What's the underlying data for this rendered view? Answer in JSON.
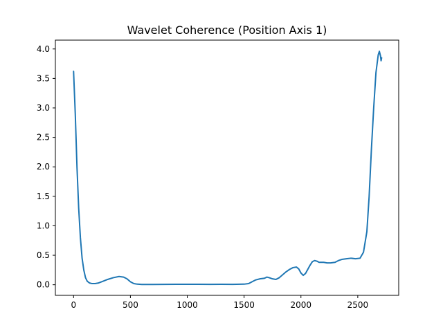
{
  "chart_data": {
    "type": "line",
    "title": "Wavelet Coherence (Position Axis 1)",
    "xlabel": "",
    "ylabel": "",
    "xlim": [
      -160,
      2860
    ],
    "ylim": [
      -0.18,
      4.15
    ],
    "xticks": [
      0,
      500,
      1000,
      1500,
      2000,
      2500
    ],
    "yticks": [
      0.0,
      0.5,
      1.0,
      1.5,
      2.0,
      2.5,
      3.0,
      3.5,
      4.0
    ],
    "xtick_labels": [
      "0",
      "500",
      "1000",
      "1500",
      "2000",
      "2500"
    ],
    "ytick_labels": [
      "0.0",
      "0.5",
      "1.0",
      "1.5",
      "2.0",
      "2.5",
      "3.0",
      "3.5",
      "4.0"
    ],
    "grid": false,
    "series": [
      {
        "color": "#1f77b4",
        "x": [
          0,
          15,
          30,
          45,
          60,
          75,
          90,
          105,
          120,
          140,
          160,
          190,
          220,
          260,
          300,
          350,
          400,
          440,
          470,
          500,
          530,
          560,
          600,
          650,
          700,
          800,
          900,
          1000,
          1100,
          1200,
          1300,
          1400,
          1500,
          1540,
          1570,
          1600,
          1640,
          1680,
          1700,
          1720,
          1750,
          1780,
          1810,
          1840,
          1870,
          1900,
          1930,
          1960,
          1980,
          2000,
          2020,
          2040,
          2060,
          2080,
          2100,
          2120,
          2140,
          2160,
          2180,
          2200,
          2230,
          2260,
          2300,
          2330,
          2360,
          2400,
          2440,
          2480,
          2520,
          2550,
          2580,
          2600,
          2620,
          2640,
          2660,
          2680,
          2690,
          2700,
          2705,
          2710
        ],
        "y": [
          3.62,
          2.9,
          2.0,
          1.3,
          0.8,
          0.45,
          0.25,
          0.12,
          0.06,
          0.03,
          0.02,
          0.02,
          0.03,
          0.06,
          0.09,
          0.12,
          0.14,
          0.13,
          0.1,
          0.05,
          0.02,
          0.01,
          0.005,
          0.005,
          0.005,
          0.006,
          0.007,
          0.008,
          0.007,
          0.006,
          0.007,
          0.006,
          0.01,
          0.02,
          0.05,
          0.08,
          0.1,
          0.11,
          0.13,
          0.12,
          0.1,
          0.09,
          0.12,
          0.17,
          0.22,
          0.26,
          0.29,
          0.3,
          0.27,
          0.2,
          0.16,
          0.19,
          0.26,
          0.33,
          0.39,
          0.41,
          0.4,
          0.38,
          0.38,
          0.38,
          0.37,
          0.37,
          0.38,
          0.41,
          0.43,
          0.44,
          0.45,
          0.44,
          0.45,
          0.55,
          0.9,
          1.5,
          2.3,
          3.0,
          3.6,
          3.9,
          3.96,
          3.88,
          3.8,
          3.85
        ]
      }
    ]
  }
}
